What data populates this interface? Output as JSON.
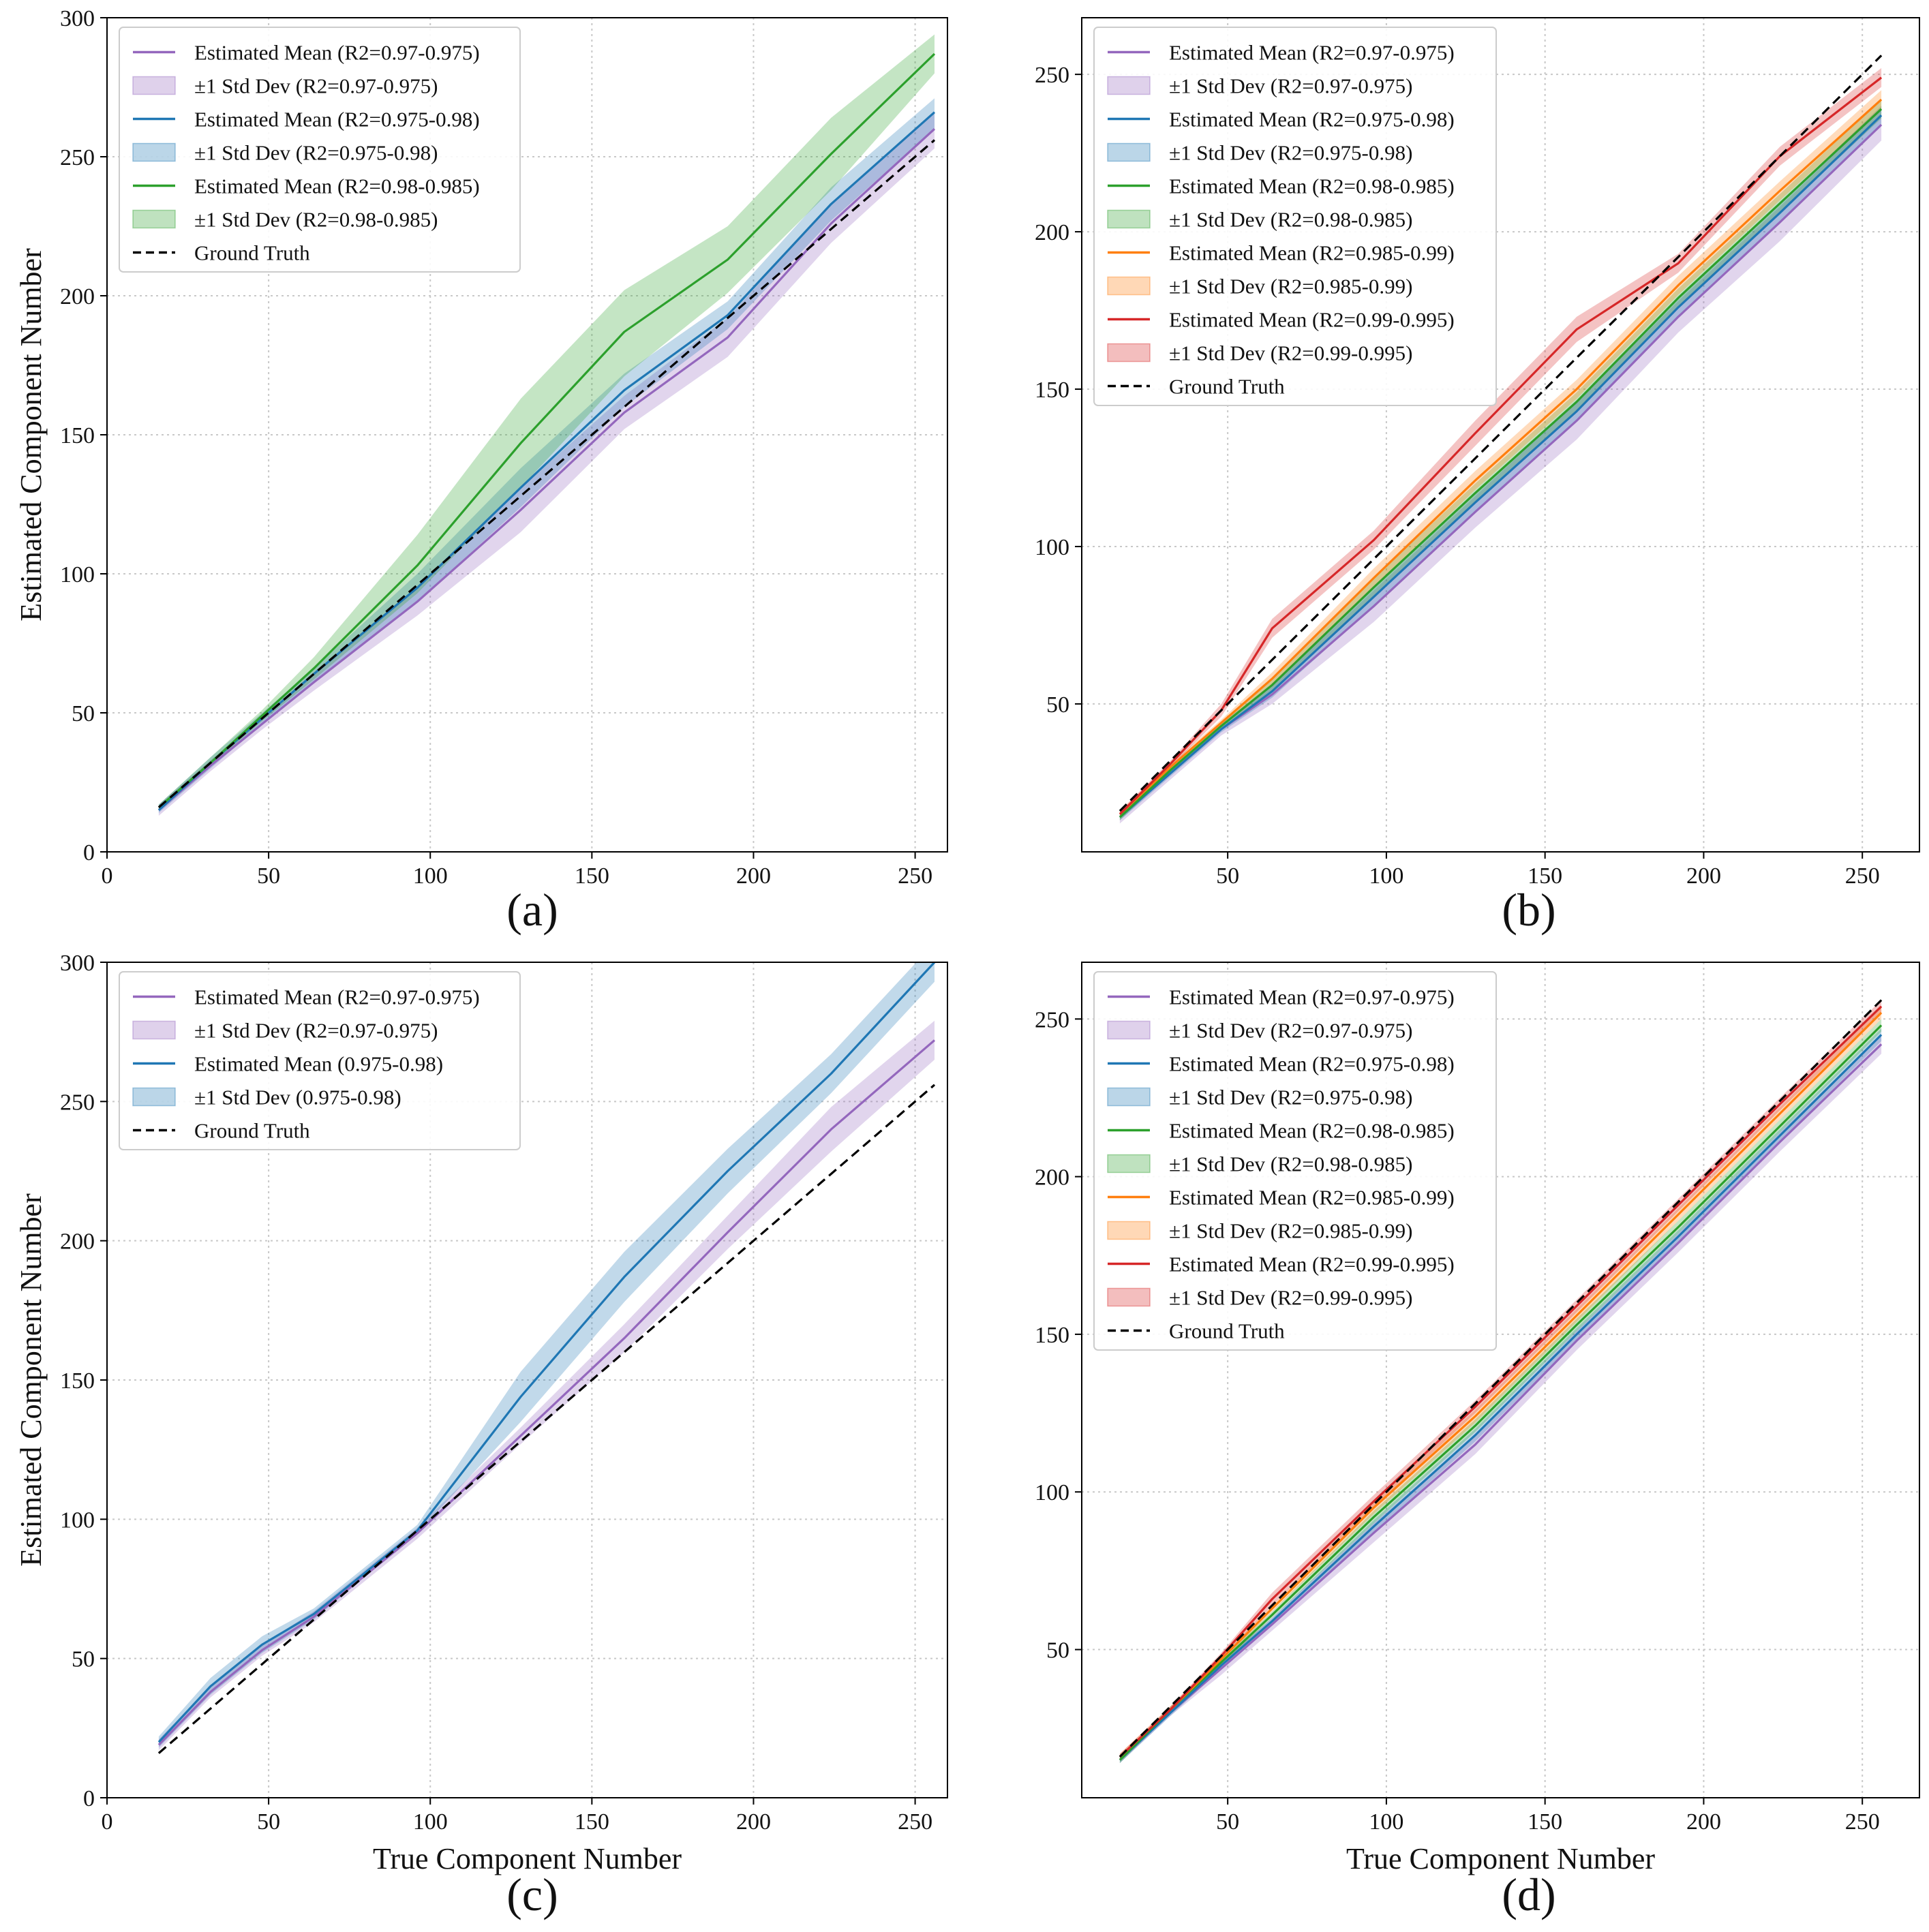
{
  "figure": {
    "xlabel": "True Component Number",
    "ylabel": "Estimated Component Number"
  },
  "colors": {
    "purple": "#9467bd",
    "blue": "#1f77b4",
    "green": "#2ca02c",
    "orange": "#ff7f0e",
    "red": "#d62728",
    "gt": "#000000"
  },
  "chart_data": [
    {
      "id": "a",
      "type": "line",
      "panel_label": "(a)",
      "xlabel": "",
      "ylabel": "Estimated Component Number",
      "xlim": [
        0,
        260
      ],
      "ylim": [
        0,
        300
      ],
      "xticks": [
        0,
        50,
        100,
        150,
        200,
        250
      ],
      "yticks": [
        0,
        50,
        100,
        150,
        200,
        250,
        300
      ],
      "grid": true,
      "legend_position": "upper-left",
      "x": [
        16,
        32,
        48,
        64,
        96,
        128,
        160,
        192,
        224,
        256
      ],
      "series": [
        {
          "name": "Estimated Mean (R2=0.97-0.975)",
          "band_label": "±1 Std Dev (R2=0.97-0.975)",
          "color": "purple",
          "mean": [
            15,
            31,
            46,
            61,
            90,
            123,
            158,
            185,
            226,
            260
          ],
          "lower": [
            13,
            29,
            44,
            58,
            85,
            115,
            152,
            178,
            219,
            253
          ],
          "upper": [
            17,
            33,
            48,
            64,
            95,
            131,
            164,
            192,
            233,
            266
          ]
        },
        {
          "name": "Estimated Mean (R2=0.975-0.98)",
          "band_label": "±1 Std Dev (R2=0.975-0.98)",
          "color": "blue",
          "mean": [
            15,
            32,
            48,
            64,
            95,
            131,
            166,
            193,
            233,
            266
          ],
          "lower": [
            14,
            30,
            46,
            61,
            90,
            124,
            160,
            188,
            227,
            260
          ],
          "upper": [
            17,
            34,
            50,
            66,
            100,
            138,
            172,
            198,
            239,
            271
          ]
        },
        {
          "name": "Estimated Mean (R2=0.98-0.985)",
          "band_label": "±1 Std Dev (R2=0.98-0.985)",
          "color": "green",
          "mean": [
            16,
            32,
            49,
            66,
            103,
            147,
            187,
            213,
            251,
            287
          ],
          "lower": [
            15,
            31,
            47,
            62,
            93,
            131,
            171,
            201,
            238,
            280
          ],
          "upper": [
            17,
            34,
            51,
            70,
            114,
            163,
            202,
            225,
            264,
            294
          ]
        }
      ],
      "ground_truth": {
        "name": "Ground Truth",
        "x": [
          16,
          256
        ],
        "y": [
          16,
          256
        ]
      }
    },
    {
      "id": "b",
      "type": "line",
      "panel_label": "(b)",
      "xlabel": "",
      "ylabel": "",
      "xlim": [
        4,
        268
      ],
      "ylim": [
        3,
        268
      ],
      "xticks": [
        50,
        100,
        150,
        200,
        250
      ],
      "yticks": [
        50,
        100,
        150,
        200,
        250
      ],
      "grid": true,
      "legend_position": "upper-left",
      "x": [
        16,
        32,
        48,
        64,
        96,
        128,
        160,
        192,
        224,
        256
      ],
      "series": [
        {
          "name": "Estimated Mean (R2=0.97-0.975)",
          "band_label": "±1 Std Dev (R2=0.97-0.975)",
          "color": "purple",
          "mean": [
            14,
            28,
            42,
            53,
            81,
            111,
            140,
            173,
            203,
            234
          ],
          "lower": [
            12,
            26,
            40,
            50,
            76,
            106,
            134,
            168,
            197,
            229
          ],
          "upper": [
            15,
            30,
            44,
            56,
            86,
            116,
            146,
            178,
            208,
            239
          ]
        },
        {
          "name": "Estimated Mean (R2=0.975-0.98)",
          "band_label": "±1 Std Dev (R2=0.975-0.98)",
          "color": "blue",
          "mean": [
            14,
            28,
            42,
            54,
            84,
            114,
            143,
            176,
            206,
            237
          ],
          "lower": [
            13,
            27,
            41,
            52,
            81,
            111,
            140,
            173,
            203,
            234
          ],
          "upper": [
            15,
            29,
            43,
            56,
            87,
            117,
            146,
            179,
            209,
            240
          ]
        },
        {
          "name": "Estimated Mean (R2=0.98-0.985)",
          "band_label": "±1 Std Dev (R2=0.98-0.985)",
          "color": "green",
          "mean": [
            14,
            29,
            43,
            56,
            87,
            117,
            146,
            179,
            209,
            239
          ],
          "lower": [
            13,
            28,
            42,
            54,
            84,
            114,
            143,
            176,
            206,
            236
          ],
          "upper": [
            15,
            30,
            44,
            58,
            90,
            120,
            149,
            182,
            212,
            242
          ]
        },
        {
          "name": "Estimated Mean (R2=0.985-0.99)",
          "band_label": "±1 Std Dev (R2=0.985-0.99)",
          "color": "orange",
          "mean": [
            15,
            30,
            44,
            58,
            90,
            121,
            150,
            183,
            213,
            242
          ],
          "lower": [
            14,
            29,
            43,
            56,
            87,
            118,
            147,
            180,
            210,
            239
          ],
          "upper": [
            16,
            31,
            45,
            60,
            93,
            124,
            153,
            186,
            216,
            245
          ]
        },
        {
          "name": "Estimated Mean (R2=0.99-0.995)",
          "band_label": "±1 Std Dev (R2=0.99-0.995)",
          "color": "red",
          "mean": [
            15,
            31,
            48,
            74,
            102,
            136,
            169,
            190,
            224,
            249
          ],
          "lower": [
            14,
            30,
            46,
            71,
            99,
            132,
            165,
            187,
            221,
            246
          ],
          "upper": [
            16,
            32,
            50,
            77,
            105,
            140,
            173,
            193,
            227,
            252
          ]
        }
      ],
      "ground_truth": {
        "name": "Ground Truth",
        "x": [
          16,
          256
        ],
        "y": [
          16,
          256
        ]
      }
    },
    {
      "id": "c",
      "type": "line",
      "panel_label": "(c)",
      "xlabel": "True Component Number",
      "ylabel": "Estimated Component Number",
      "xlim": [
        0,
        260
      ],
      "ylim": [
        0,
        300
      ],
      "xticks": [
        0,
        50,
        100,
        150,
        200,
        250
      ],
      "yticks": [
        0,
        50,
        100,
        150,
        200,
        250,
        300
      ],
      "grid": true,
      "legend_position": "upper-left",
      "x": [
        16,
        32,
        48,
        64,
        96,
        128,
        160,
        192,
        224,
        256
      ],
      "series": [
        {
          "name": "Estimated Mean (R2=0.97-0.975)",
          "band_label": "±1 Std Dev (R2=0.97-0.975)",
          "color": "purple",
          "mean": [
            19,
            38,
            53,
            65,
            95,
            130,
            165,
            203,
            240,
            272
          ],
          "lower": [
            17,
            36,
            51,
            63,
            93,
            127,
            160,
            197,
            232,
            265
          ],
          "upper": [
            21,
            40,
            55,
            67,
            97,
            133,
            170,
            209,
            248,
            279
          ]
        },
        {
          "name": "Estimated Mean (0.975-0.98)",
          "band_label": "±1 Std Dev (0.975-0.98)",
          "color": "blue",
          "mean": [
            20,
            40,
            55,
            66,
            96,
            144,
            187,
            225,
            260,
            300
          ],
          "lower": [
            18,
            37,
            52,
            64,
            95,
            135,
            178,
            217,
            253,
            293
          ],
          "upper": [
            22,
            43,
            58,
            68,
            98,
            153,
            196,
            233,
            267,
            307
          ]
        }
      ],
      "ground_truth": {
        "name": "Ground Truth",
        "x": [
          16,
          256
        ],
        "y": [
          16,
          256
        ]
      }
    },
    {
      "id": "d",
      "type": "line",
      "panel_label": "(d)",
      "xlabel": "True Component Number",
      "ylabel": "",
      "xlim": [
        4,
        268
      ],
      "ylim": [
        3,
        268
      ],
      "xticks": [
        50,
        100,
        150,
        200,
        250
      ],
      "yticks": [
        50,
        100,
        150,
        200,
        250
      ],
      "grid": true,
      "legend_position": "upper-left",
      "x": [
        16,
        32,
        48,
        64,
        96,
        128,
        160,
        192,
        224,
        256
      ],
      "series": [
        {
          "name": "Estimated Mean (R2=0.97-0.975)",
          "band_label": "±1 Std Dev (R2=0.97-0.975)",
          "color": "purple",
          "mean": [
            15,
            30,
            44,
            58,
            87,
            115,
            148,
            179,
            211,
            242
          ],
          "lower": [
            14,
            29,
            42,
            56,
            84,
            112,
            145,
            176,
            208,
            239
          ],
          "upper": [
            16,
            31,
            46,
            60,
            90,
            118,
            151,
            182,
            214,
            245
          ]
        },
        {
          "name": "Estimated Mean (R2=0.975-0.98)",
          "band_label": "±1 Std Dev (R2=0.975-0.98)",
          "color": "blue",
          "mean": [
            15,
            30,
            45,
            59,
            89,
            118,
            150,
            181,
            213,
            245
          ],
          "lower": [
            14,
            29,
            44,
            58,
            87,
            116,
            148,
            179,
            211,
            243
          ],
          "upper": [
            16,
            31,
            46,
            60,
            91,
            120,
            152,
            183,
            215,
            247
          ]
        },
        {
          "name": "Estimated Mean (R2=0.98-0.985)",
          "band_label": "±1 Std Dev (R2=0.98-0.985)",
          "color": "green",
          "mean": [
            15,
            31,
            46,
            61,
            92,
            121,
            153,
            184,
            216,
            248
          ],
          "lower": [
            14,
            30,
            45,
            60,
            90,
            119,
            151,
            182,
            214,
            246
          ],
          "upper": [
            16,
            32,
            47,
            62,
            94,
            123,
            155,
            186,
            218,
            250
          ]
        },
        {
          "name": "Estimated Mean (R2=0.985-0.99)",
          "band_label": "±1 Std Dev (R2=0.985-0.99)",
          "color": "orange",
          "mean": [
            16,
            31,
            47,
            63,
            95,
            124,
            156,
            188,
            220,
            252
          ],
          "lower": [
            15,
            30,
            46,
            62,
            93,
            122,
            154,
            186,
            218,
            250
          ],
          "upper": [
            17,
            32,
            48,
            64,
            97,
            126,
            158,
            190,
            222,
            254
          ]
        },
        {
          "name": "Estimated Mean (R2=0.99-0.995)",
          "band_label": "±1 Std Dev (R2=0.99-0.995)",
          "color": "red",
          "mean": [
            16,
            31,
            48,
            66,
            97,
            127,
            159,
            191,
            223,
            254
          ],
          "lower": [
            15,
            30,
            47,
            64,
            95,
            125,
            157,
            189,
            221,
            252
          ],
          "upper": [
            17,
            32,
            49,
            68,
            99,
            129,
            161,
            193,
            225,
            256
          ]
        }
      ],
      "ground_truth": {
        "name": "Ground Truth",
        "x": [
          16,
          256
        ],
        "y": [
          16,
          256
        ]
      }
    }
  ]
}
